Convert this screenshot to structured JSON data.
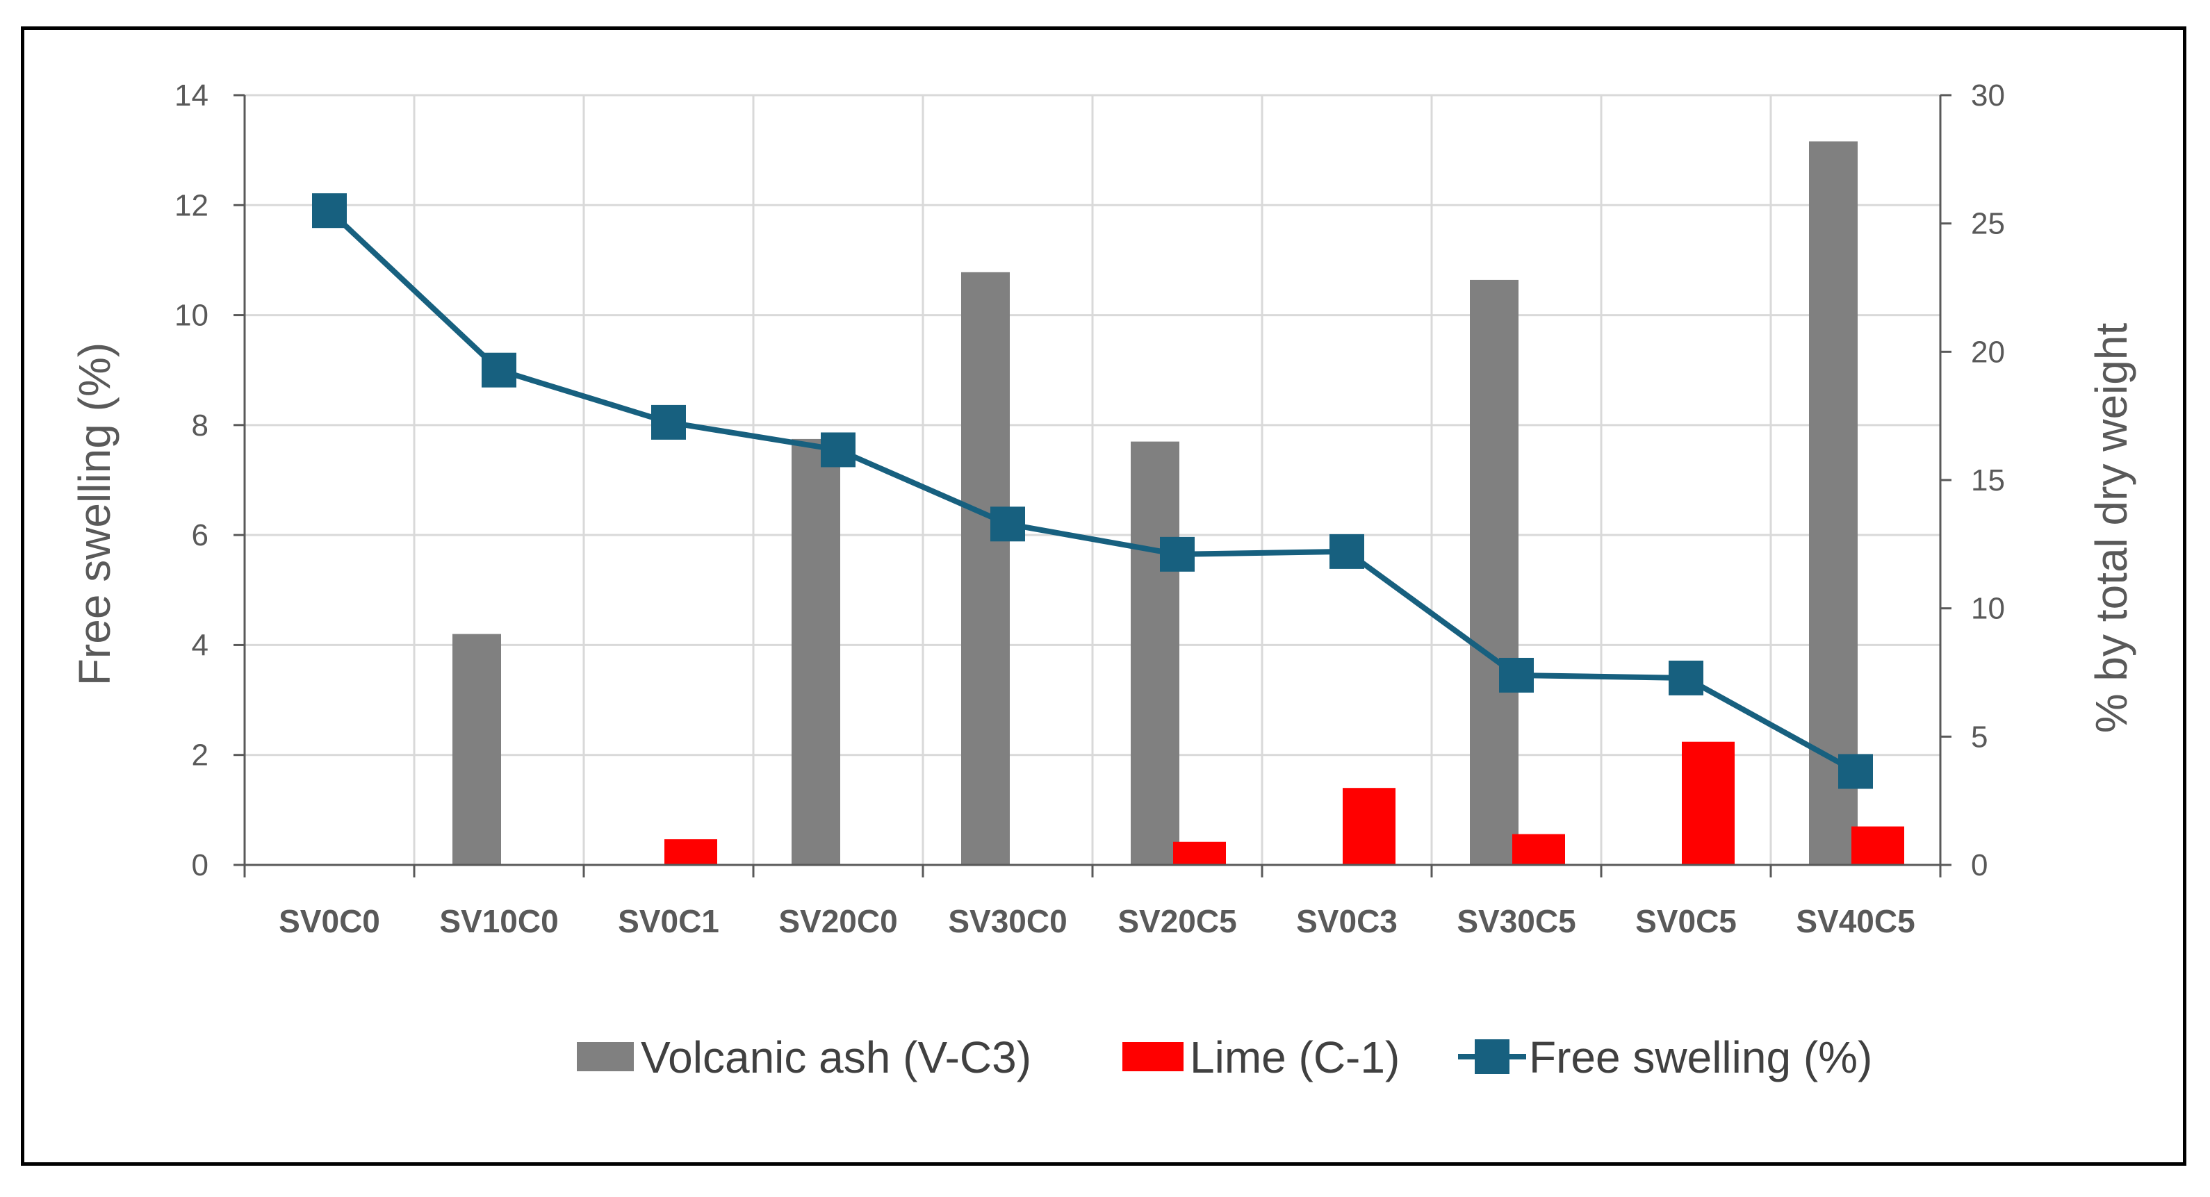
{
  "chart_data": {
    "type": "bar+line",
    "categories": [
      "SV0C0",
      "SV10C0",
      "SV0C1",
      "SV20C0",
      "SV30C0",
      "SV20C5",
      "SV0C3",
      "SV30C5",
      "SV0C5",
      "SV40C5"
    ],
    "series": [
      {
        "name": "Volcanic ash (V-C3)",
        "type": "bar",
        "axis": "right",
        "color": "#808080",
        "values": [
          0,
          9,
          0,
          16.6,
          23.1,
          16.5,
          0,
          22.8,
          0,
          28.2
        ]
      },
      {
        "name": "Lime (C-1)",
        "type": "bar",
        "axis": "right",
        "color": "#ff0000",
        "values": [
          0,
          0,
          1,
          0,
          0,
          0.9,
          3,
          1.2,
          4.8,
          1.5
        ]
      },
      {
        "name": "Free swelling (%)",
        "type": "line",
        "axis": "left",
        "color": "#17607f",
        "marker": "square",
        "values": [
          11.9,
          9.0,
          8.05,
          7.55,
          6.2,
          5.65,
          5.7,
          3.45,
          3.4,
          1.7
        ]
      }
    ],
    "ylabel_left": "Free swelling (%)",
    "ylabel_right": "% by total dry weight",
    "ylim_left": [
      0,
      14
    ],
    "ylim_right": [
      0,
      30
    ],
    "yticks_left": [
      "0",
      "2",
      "4",
      "6",
      "8",
      "10",
      "12",
      "14"
    ],
    "yticks_right": [
      "0",
      "5",
      "10",
      "15",
      "20",
      "25",
      "30"
    ],
    "grid": true,
    "legend_position": "bottom"
  }
}
